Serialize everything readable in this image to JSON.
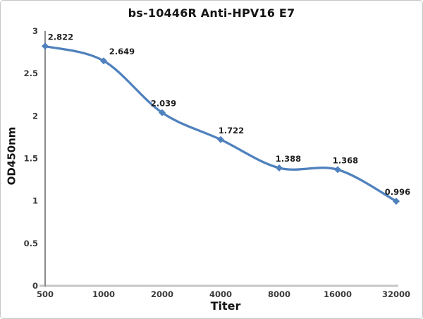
{
  "window": {
    "background_color": "#ffffff",
    "frame_border_color": "#c6c6c6"
  },
  "chart_data": {
    "type": "line",
    "title": "bs-10446R Anti-HPV16 E7",
    "xlabel": "Titer",
    "ylabel": "OD450nm",
    "categories": [
      "500",
      "1000",
      "2000",
      "4000",
      "8000",
      "16000",
      "32000"
    ],
    "series": [
      {
        "name": "OD450nm",
        "values": [
          2.822,
          2.649,
          2.039,
          1.722,
          1.388,
          1.368,
          0.996
        ],
        "data_labels": [
          "2.822",
          "2.649",
          "2.039",
          "1.722",
          "1.388",
          "1.368",
          "0.996"
        ]
      }
    ],
    "ylim": [
      0,
      3
    ],
    "ytick_labels": [
      "0",
      "0.5",
      "1",
      "1.5",
      "2",
      "2.5",
      "3"
    ],
    "ytick_values": [
      0,
      0.5,
      1,
      1.5,
      2,
      2.5,
      3
    ],
    "grid": false,
    "legend": false,
    "smooth_line": true,
    "marker_shape": "diamond",
    "series_color": "#4F81BD",
    "y_axis_line_color": "#8C8C8C",
    "x_axis_line_color": "#C6C6C6",
    "tick_text_color": "#3A3A3A",
    "data_label_color": "#1F1F1F"
  }
}
